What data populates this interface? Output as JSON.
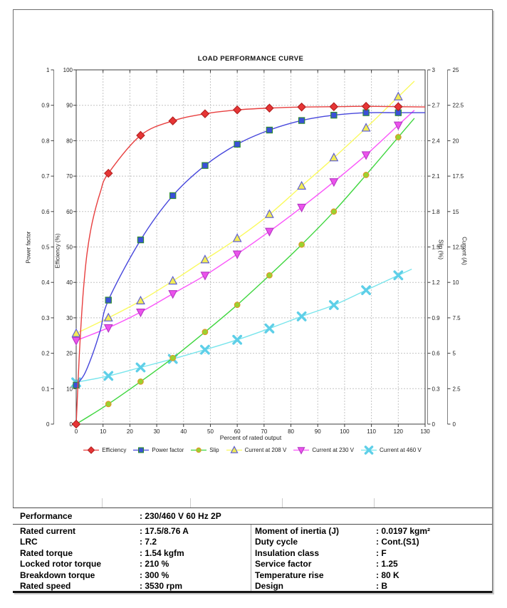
{
  "chart_data": {
    "type": "line",
    "title": "LOAD PERFORMANCE CURVE",
    "xlabel": "Percent of rated output",
    "x": [
      0,
      12,
      24,
      36,
      48,
      60,
      72,
      84,
      96,
      108,
      120
    ],
    "axes": {
      "power_factor": {
        "label": "Power factor",
        "min": 0,
        "max": 1,
        "ticks": [
          "0",
          "0.1",
          "0.2",
          "0.3",
          "0.4",
          "0.5",
          "0.6",
          "0.7",
          "0.8",
          "0.9",
          "1"
        ]
      },
      "efficiency": {
        "label": "Efficiency (%)",
        "min": 0,
        "max": 100,
        "ticks": [
          "0",
          "10",
          "20",
          "30",
          "40",
          "50",
          "60",
          "70",
          "80",
          "90",
          "100"
        ]
      },
      "slip": {
        "label": "Slip (%)",
        "min": 0,
        "max": 3,
        "ticks": [
          "0",
          "0.3",
          "0.6",
          "0.9",
          "1.2",
          "1.5",
          "1.8",
          "2.1",
          "2.4",
          "2.7",
          "3"
        ]
      },
      "current": {
        "label": "Current (A)",
        "min": 0,
        "max": 25,
        "ticks": [
          "0",
          "2.5",
          "5",
          "7.5",
          "10",
          "12.5",
          "15",
          "17.5",
          "20",
          "22.5",
          "25"
        ]
      }
    },
    "x_axis": {
      "min": 0,
      "max": 130,
      "ticks": [
        "0",
        "10",
        "20",
        "30",
        "40",
        "50",
        "60",
        "70",
        "80",
        "90",
        "100",
        "110",
        "120",
        "130"
      ]
    },
    "grid": true,
    "legend_position": "bottom",
    "series": [
      {
        "name": "Efficiency",
        "axis": "efficiency",
        "marker": "diamond",
        "line_color": "#e84040",
        "fill": "#e63535",
        "edge": "#b42020",
        "values": [
          0,
          70.8,
          81.5,
          85.6,
          87.6,
          88.7,
          89.2,
          89.5,
          89.6,
          89.7,
          89.6
        ],
        "curve_helpers": [
          [
            1.2,
            20
          ],
          [
            2.5,
            36
          ],
          [
            4,
            48
          ],
          [
            6,
            57
          ],
          [
            9,
            65.5
          ]
        ],
        "extend_to": 130
      },
      {
        "name": "Power factor",
        "axis": "power_factor",
        "marker": "square",
        "line_color": "#4646dc",
        "fill": "#3a50d8",
        "edge": "#2e8b2e",
        "values": [
          0.11,
          0.35,
          0.52,
          0.645,
          0.73,
          0.79,
          0.83,
          0.857,
          0.872,
          0.879,
          0.879
        ],
        "curve_helpers": [
          [
            3,
            0.14
          ],
          [
            6,
            0.195
          ],
          [
            9,
            0.265
          ]
        ],
        "extend_to": 130
      },
      {
        "name": "Slip",
        "axis": "slip",
        "marker": "circle",
        "line_color": "#3fd63f",
        "fill": "#9ad32f",
        "edge": "#e2932b",
        "values": [
          0,
          0.17,
          0.36,
          0.56,
          0.78,
          1.01,
          1.26,
          1.52,
          1.8,
          2.11,
          2.43
        ],
        "curve_helpers": [],
        "extend_to": 126
      },
      {
        "name": "Current at 208 V",
        "axis": "current",
        "marker": "triangle-up",
        "line_color": "#fafa60",
        "fill": "#f2ec55",
        "edge": "#5757d4",
        "values": [
          6.4,
          7.5,
          8.7,
          10.1,
          11.6,
          13.1,
          14.8,
          16.8,
          18.8,
          20.9,
          23.1
        ],
        "curve_helpers": [],
        "extend_to": 126
      },
      {
        "name": "Current at 230 V",
        "axis": "current",
        "marker": "triangle-down",
        "line_color": "#fa55fa",
        "fill": "#ec52ec",
        "edge": "#b438c4",
        "values": [
          5.9,
          6.8,
          7.9,
          9.2,
          10.5,
          12.0,
          13.6,
          15.3,
          17.1,
          19.0,
          21.1
        ],
        "curve_helpers": [],
        "extend_to": 126
      },
      {
        "name": "Current at 460 V",
        "axis": "current",
        "marker": "x",
        "line_color": "#79e5ec",
        "fill": "#5ecfe8",
        "edge": "#5ecfe8",
        "values": [
          2.95,
          3.4,
          4.0,
          4.6,
          5.25,
          5.95,
          6.75,
          7.6,
          8.4,
          9.45,
          10.5
        ],
        "curve_helpers": [],
        "extend_to": 125
      }
    ]
  },
  "table": {
    "performance": {
      "label": "Performance",
      "value": ": 230/460 V 60 Hz 2P"
    },
    "left": [
      {
        "label": "Rated current",
        "value": ": 17.5/8.76 A"
      },
      {
        "label": "LRC",
        "value": ": 7.2"
      },
      {
        "label": "Rated torque",
        "value": ": 1.54 kgfm"
      },
      {
        "label": "Locked rotor torque",
        "value": ": 210 %"
      },
      {
        "label": "Breakdown torque",
        "value": ": 300 %"
      },
      {
        "label": "Rated speed",
        "value": ": 3530 rpm"
      }
    ],
    "right": [
      {
        "label": "Moment of inertia (J)",
        "value": ": 0.0197 kgm²"
      },
      {
        "label": "Duty cycle",
        "value": ": Cont.(S1)"
      },
      {
        "label": "Insulation class",
        "value": ": F"
      },
      {
        "label": "Service factor",
        "value": ": 1.25"
      },
      {
        "label": "Temperature rise",
        "value": ": 80 K"
      },
      {
        "label": "Design",
        "value": ": B"
      }
    ]
  }
}
